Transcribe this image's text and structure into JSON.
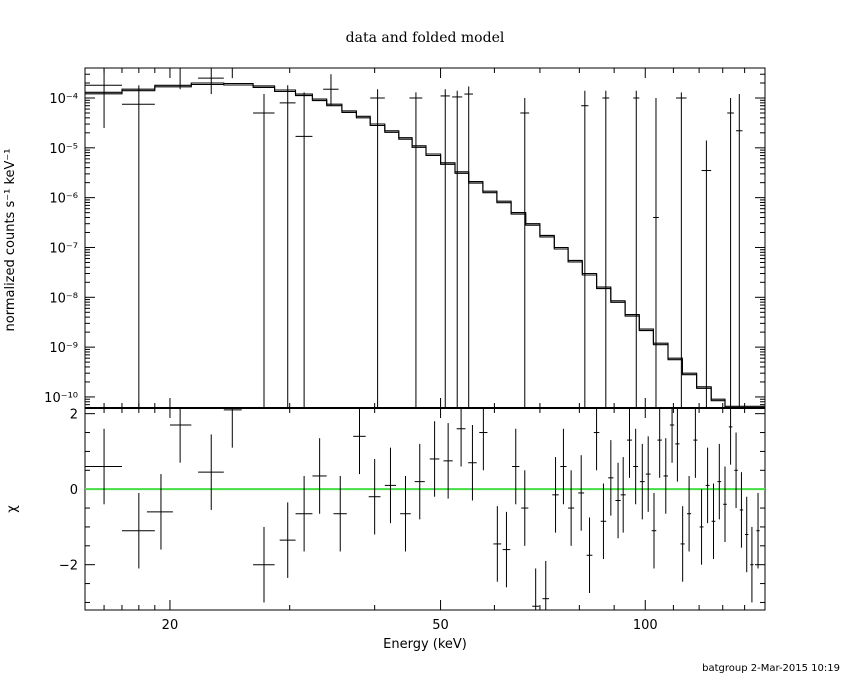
{
  "chart_data": {
    "type": "scatter",
    "title": "data and folded model",
    "xlabel": "Energy (keV)",
    "xscale": "log",
    "xlim": [
      15,
      150
    ],
    "xticks": [
      20,
      50,
      100
    ],
    "panels": [
      {
        "name": "spectrum",
        "ylabel": "normalized counts s⁻¹ keV⁻¹",
        "yscale": "log",
        "ylim": [
          6e-11,
          0.0004
        ],
        "yticks": [
          1e-10,
          1e-09,
          1e-08,
          1e-07,
          1e-06,
          1e-05,
          0.0001
        ],
        "ytick_labels": [
          "10⁻¹⁰",
          "10⁻⁹",
          "10⁻⁸",
          "10⁻⁷",
          "10⁻⁶",
          "10⁻⁵",
          "10⁻⁴"
        ],
        "data_points": [
          {
            "x": 16.0,
            "xlo": 15.0,
            "xhi": 17.0,
            "y": 0.00018,
            "ylo": 2.5e-05,
            "yhi": 0.0004
          },
          {
            "x": 18.0,
            "xlo": 17.0,
            "xhi": 19.0,
            "y": 7.5e-05,
            "ylo": 6e-11,
            "yhi": 0.00018
          },
          {
            "x": 20.7,
            "xlo": 20.0,
            "xhi": 21.5,
            "y": 0.0004,
            "ylo": 0.00015,
            "yhi": 0.0005
          },
          {
            "x": 23.0,
            "xlo": 22.0,
            "xhi": 24.0,
            "y": 0.00025,
            "ylo": 0.00012,
            "yhi": 0.00045
          },
          {
            "x": 24.7,
            "xlo": 24.0,
            "xhi": 25.5,
            "y": 0.00045,
            "ylo": 0.00025,
            "yhi": 0.0005
          },
          {
            "x": 27.5,
            "xlo": 26.5,
            "xhi": 28.5,
            "y": 5e-05,
            "ylo": 6e-11,
            "yhi": 0.00012
          },
          {
            "x": 29.8,
            "xlo": 29.0,
            "xhi": 30.6,
            "y": 8e-05,
            "ylo": 6e-11,
            "yhi": 0.00018
          },
          {
            "x": 31.5,
            "xlo": 30.6,
            "xhi": 32.4,
            "y": 1.7e-05,
            "ylo": 6e-11,
            "yhi": 0.00013
          },
          {
            "x": 34.5,
            "xlo": 33.6,
            "xhi": 35.4,
            "y": 0.00015,
            "ylo": 7e-05,
            "yhi": 0.0003
          },
          {
            "x": 40.4,
            "xlo": 39.4,
            "xhi": 41.4,
            "y": 0.0001,
            "ylo": 6e-11,
            "yhi": 0.00015
          },
          {
            "x": 46.0,
            "xlo": 45.0,
            "xhi": 47.0,
            "y": 0.0001,
            "ylo": 6e-11,
            "yhi": 0.00013
          },
          {
            "x": 50.8,
            "xlo": 50.0,
            "xhi": 51.6,
            "y": 0.00011,
            "ylo": 6e-11,
            "yhi": 0.00015
          },
          {
            "x": 52.9,
            "xlo": 52.0,
            "xhi": 53.8,
            "y": 0.000105,
            "ylo": 6e-11,
            "yhi": 0.00014
          },
          {
            "x": 55.0,
            "xlo": 54.2,
            "xhi": 55.8,
            "y": 0.00012,
            "ylo": 6e-11,
            "yhi": 0.00017
          },
          {
            "x": 66.5,
            "xlo": 65.5,
            "xhi": 67.5,
            "y": 5e-05,
            "ylo": 6e-11,
            "yhi": 0.0001
          },
          {
            "x": 81.5,
            "xlo": 80.5,
            "xhi": 82.5,
            "y": 7e-05,
            "ylo": 6e-11,
            "yhi": 0.00014
          },
          {
            "x": 87.5,
            "xlo": 86.5,
            "xhi": 88.5,
            "y": 0.0001,
            "ylo": 6e-11,
            "yhi": 0.00014
          },
          {
            "x": 97.0,
            "xlo": 96.0,
            "xhi": 98.0,
            "y": 0.0001,
            "ylo": 6e-11,
            "yhi": 0.00014
          },
          {
            "x": 103.7,
            "xlo": 102.7,
            "xhi": 104.7,
            "y": 4e-07,
            "ylo": 6e-11,
            "yhi": 0.0001
          },
          {
            "x": 113.0,
            "xlo": 111.0,
            "xhi": 115.0,
            "y": 0.0001,
            "ylo": 6e-11,
            "yhi": 0.00013
          },
          {
            "x": 123.0,
            "xlo": 121.0,
            "xhi": 125.0,
            "y": 3.5e-06,
            "ylo": 6e-11,
            "yhi": 1.4e-05
          },
          {
            "x": 133.5,
            "xlo": 132.0,
            "xhi": 135.0,
            "y": 5e-05,
            "ylo": 6e-11,
            "yhi": 0.0001
          },
          {
            "x": 137.5,
            "xlo": 136.0,
            "xhi": 139.0,
            "y": 2.2e-05,
            "ylo": 6e-11,
            "yhi": 0.00012
          }
        ],
        "model_step": [
          {
            "xlo": 15.0,
            "xhi": 17.0,
            "y": 0.00013
          },
          {
            "xlo": 17.0,
            "xhi": 19.0,
            "y": 0.00015
          },
          {
            "xlo": 19.0,
            "xhi": 21.5,
            "y": 0.00018
          },
          {
            "xlo": 21.5,
            "xhi": 24.0,
            "y": 0.0002
          },
          {
            "xlo": 24.0,
            "xhi": 26.5,
            "y": 0.000195
          },
          {
            "xlo": 26.5,
            "xhi": 28.5,
            "y": 0.000175
          },
          {
            "xlo": 28.5,
            "xhi": 30.6,
            "y": 0.000145
          },
          {
            "xlo": 30.6,
            "xhi": 32.4,
            "y": 0.00012
          },
          {
            "xlo": 32.4,
            "xhi": 34.0,
            "y": 9.5e-05
          },
          {
            "xlo": 34.0,
            "xhi": 35.8,
            "y": 7.5e-05
          },
          {
            "xlo": 35.8,
            "xhi": 37.6,
            "y": 5.5e-05
          },
          {
            "xlo": 37.6,
            "xhi": 39.4,
            "y": 4.3e-05
          },
          {
            "xlo": 39.4,
            "xhi": 41.4,
            "y": 3e-05
          },
          {
            "xlo": 41.4,
            "xhi": 43.4,
            "y": 2.2e-05
          },
          {
            "xlo": 43.4,
            "xhi": 45.4,
            "y": 1.6e-05
          },
          {
            "xlo": 45.4,
            "xhi": 47.6,
            "y": 1.1e-05
          },
          {
            "xlo": 47.6,
            "xhi": 50.0,
            "y": 7.5e-06
          },
          {
            "xlo": 50.0,
            "xhi": 52.5,
            "y": 5e-06
          },
          {
            "xlo": 52.5,
            "xhi": 55.0,
            "y": 3.3e-06
          },
          {
            "xlo": 55.0,
            "xhi": 57.7,
            "y": 2.1e-06
          },
          {
            "xlo": 57.7,
            "xhi": 60.5,
            "y": 1.35e-06
          },
          {
            "xlo": 60.5,
            "xhi": 63.5,
            "y": 8.5e-07
          },
          {
            "xlo": 63.5,
            "xhi": 66.7,
            "y": 5e-07
          },
          {
            "xlo": 66.7,
            "xhi": 70.0,
            "y": 3e-07
          },
          {
            "xlo": 70.0,
            "xhi": 73.5,
            "y": 1.75e-07
          },
          {
            "xlo": 73.5,
            "xhi": 77.0,
            "y": 1e-07
          },
          {
            "xlo": 77.0,
            "xhi": 80.8,
            "y": 5.5e-08
          },
          {
            "xlo": 80.8,
            "xhi": 84.8,
            "y": 3e-08
          },
          {
            "xlo": 84.8,
            "xhi": 89.0,
            "y": 1.6e-08
          },
          {
            "xlo": 89.0,
            "xhi": 93.4,
            "y": 8.5e-09
          },
          {
            "xlo": 93.4,
            "xhi": 98.0,
            "y": 4.5e-09
          },
          {
            "xlo": 98.0,
            "xhi": 102.8,
            "y": 2.3e-09
          },
          {
            "xlo": 102.8,
            "xhi": 108.0,
            "y": 1.2e-09
          },
          {
            "xlo": 108.0,
            "xhi": 113.4,
            "y": 6e-10
          },
          {
            "xlo": 113.4,
            "xhi": 119.0,
            "y": 3e-10
          },
          {
            "xlo": 119.0,
            "xhi": 125.0,
            "y": 1.6e-10
          },
          {
            "xlo": 125.0,
            "xhi": 131.0,
            "y": 9e-11
          },
          {
            "xlo": 131.0,
            "xhi": 150.0,
            "y": 6.5e-11
          }
        ]
      },
      {
        "name": "residuals",
        "ylabel": "χ",
        "ylim": [
          -3.2,
          2.15
        ],
        "yticks": [
          -2,
          0,
          2
        ],
        "zero_line_color": "#44dd44",
        "data_points": [
          {
            "x": 16.0,
            "xlo": 15.0,
            "xhi": 17.0,
            "y": 0.6,
            "err": 1.0
          },
          {
            "x": 18.0,
            "xlo": 17.0,
            "xhi": 19.0,
            "y": -1.1,
            "err": 1.0
          },
          {
            "x": 19.4,
            "xlo": 18.5,
            "xhi": 20.2,
            "y": -0.6,
            "err": 1.0
          },
          {
            "x": 20.7,
            "xlo": 20.0,
            "xhi": 21.5,
            "y": 1.7,
            "err": 1.0
          },
          {
            "x": 23.0,
            "xlo": 22.0,
            "xhi": 24.0,
            "y": 0.45,
            "err": 1.0
          },
          {
            "x": 24.7,
            "xlo": 24.0,
            "xhi": 25.5,
            "y": 2.1,
            "err": 1.0
          },
          {
            "x": 27.5,
            "xlo": 26.5,
            "xhi": 28.5,
            "y": -2.0,
            "err": 1.0
          },
          {
            "x": 29.8,
            "xlo": 29.0,
            "xhi": 30.6,
            "y": -1.35,
            "err": 1.0
          },
          {
            "x": 31.5,
            "xlo": 30.6,
            "xhi": 32.4,
            "y": -0.65,
            "err": 1.0
          },
          {
            "x": 33.2,
            "xlo": 32.4,
            "xhi": 34.0,
            "y": 0.35,
            "err": 1.0
          },
          {
            "x": 35.6,
            "xlo": 34.8,
            "xhi": 36.4,
            "y": -0.65,
            "err": 1.0
          },
          {
            "x": 38.0,
            "xlo": 37.2,
            "xhi": 38.8,
            "y": 1.4,
            "err": 1.0
          },
          {
            "x": 40.0,
            "xlo": 39.2,
            "xhi": 40.8,
            "y": -0.2,
            "err": 1.0
          },
          {
            "x": 42.2,
            "xlo": 41.4,
            "xhi": 43.0,
            "y": 0.1,
            "err": 1.0
          },
          {
            "x": 44.4,
            "xlo": 43.6,
            "xhi": 45.2,
            "y": -0.65,
            "err": 1.0
          },
          {
            "x": 46.6,
            "xlo": 45.8,
            "xhi": 47.4,
            "y": 0.2,
            "err": 1.0
          },
          {
            "x": 49.0,
            "xlo": 48.2,
            "xhi": 49.8,
            "y": 0.8,
            "err": 1.0
          },
          {
            "x": 51.3,
            "xlo": 50.5,
            "xhi": 52.1,
            "y": 0.75,
            "err": 1.0
          },
          {
            "x": 53.6,
            "xlo": 52.8,
            "xhi": 54.4,
            "y": 1.6,
            "err": 1.0
          },
          {
            "x": 55.7,
            "xlo": 54.9,
            "xhi": 56.5,
            "y": 0.7,
            "err": 1.0
          },
          {
            "x": 57.8,
            "xlo": 57.0,
            "xhi": 58.6,
            "y": 1.5,
            "err": 1.0
          },
          {
            "x": 60.6,
            "xlo": 59.8,
            "xhi": 61.4,
            "y": -1.45,
            "err": 1.0
          },
          {
            "x": 62.5,
            "xlo": 61.7,
            "xhi": 63.3,
            "y": -1.6,
            "err": 1.0
          },
          {
            "x": 64.5,
            "xlo": 63.7,
            "xhi": 65.3,
            "y": 0.6,
            "err": 1.0
          },
          {
            "x": 66.5,
            "xlo": 65.7,
            "xhi": 67.3,
            "y": -0.5,
            "err": 1.0
          },
          {
            "x": 69.0,
            "xlo": 68.2,
            "xhi": 69.8,
            "y": -3.1,
            "err": 1.0
          },
          {
            "x": 71.4,
            "xlo": 70.6,
            "xhi": 72.2,
            "y": -2.9,
            "err": 1.0
          },
          {
            "x": 73.8,
            "xlo": 73.0,
            "xhi": 74.6,
            "y": -0.15,
            "err": 1.0
          },
          {
            "x": 75.8,
            "xlo": 75.0,
            "xhi": 76.6,
            "y": 0.6,
            "err": 1.0
          },
          {
            "x": 77.8,
            "xlo": 77.0,
            "xhi": 78.6,
            "y": -0.5,
            "err": 1.0
          },
          {
            "x": 80.5,
            "xlo": 79.7,
            "xhi": 81.3,
            "y": -0.1,
            "err": 1.0
          },
          {
            "x": 82.8,
            "xlo": 82.0,
            "xhi": 83.6,
            "y": -1.75,
            "err": 1.0
          },
          {
            "x": 84.8,
            "xlo": 84.0,
            "xhi": 85.6,
            "y": 1.5,
            "err": 1.0
          },
          {
            "x": 86.8,
            "xlo": 86.0,
            "xhi": 87.6,
            "y": -0.85,
            "err": 1.0
          },
          {
            "x": 89.0,
            "xlo": 88.2,
            "xhi": 89.8,
            "y": 0.3,
            "err": 1.0
          },
          {
            "x": 91.2,
            "xlo": 90.4,
            "xhi": 92.0,
            "y": -0.3,
            "err": 1.0
          },
          {
            "x": 92.8,
            "xlo": 92.0,
            "xhi": 93.6,
            "y": -0.15,
            "err": 1.0
          },
          {
            "x": 94.8,
            "xlo": 94.0,
            "xhi": 95.6,
            "y": 1.3,
            "err": 1.0
          },
          {
            "x": 96.8,
            "xlo": 96.0,
            "xhi": 97.6,
            "y": 0.6,
            "err": 1.0
          },
          {
            "x": 99.0,
            "xlo": 98.2,
            "xhi": 99.8,
            "y": 0.2,
            "err": 1.0
          },
          {
            "x": 101.0,
            "xlo": 100.2,
            "xhi": 101.8,
            "y": 0.4,
            "err": 1.0
          },
          {
            "x": 103.0,
            "xlo": 102.2,
            "xhi": 103.8,
            "y": -1.1,
            "err": 1.0
          },
          {
            "x": 105.0,
            "xlo": 104.2,
            "xhi": 105.8,
            "y": 1.3,
            "err": 1.0
          },
          {
            "x": 107.2,
            "xlo": 106.4,
            "xhi": 108.0,
            "y": 0.35,
            "err": 1.0
          },
          {
            "x": 109.5,
            "xlo": 108.7,
            "xhi": 110.3,
            "y": 1.7,
            "err": 1.0
          },
          {
            "x": 111.5,
            "xlo": 110.7,
            "xhi": 112.3,
            "y": 1.2,
            "err": 1.0
          },
          {
            "x": 113.5,
            "xlo": 112.7,
            "xhi": 114.3,
            "y": -1.45,
            "err": 1.0
          },
          {
            "x": 116.0,
            "xlo": 115.2,
            "xhi": 116.8,
            "y": -0.65,
            "err": 1.0
          },
          {
            "x": 118.5,
            "xlo": 117.7,
            "xhi": 119.3,
            "y": 1.3,
            "err": 1.0
          },
          {
            "x": 121.0,
            "xlo": 120.2,
            "xhi": 121.8,
            "y": -1.0,
            "err": 1.0
          },
          {
            "x": 123.5,
            "xlo": 122.7,
            "xhi": 124.3,
            "y": 0.1,
            "err": 1.0
          },
          {
            "x": 126.0,
            "xlo": 125.2,
            "xhi": 126.8,
            "y": -0.85,
            "err": 1.0
          },
          {
            "x": 128.5,
            "xlo": 127.7,
            "xhi": 129.3,
            "y": 0.2,
            "err": 1.0
          },
          {
            "x": 131.0,
            "xlo": 130.2,
            "xhi": 131.8,
            "y": -0.4,
            "err": 1.0
          },
          {
            "x": 133.5,
            "xlo": 132.7,
            "xhi": 134.3,
            "y": 1.65,
            "err": 1.0
          },
          {
            "x": 136.0,
            "xlo": 135.2,
            "xhi": 136.8,
            "y": 0.5,
            "err": 1.0
          },
          {
            "x": 138.5,
            "xlo": 137.7,
            "xhi": 139.3,
            "y": -0.55,
            "err": 1.0
          },
          {
            "x": 141.0,
            "xlo": 140.2,
            "xhi": 141.8,
            "y": -1.2,
            "err": 1.0
          },
          {
            "x": 143.5,
            "xlo": 142.7,
            "xhi": 144.3,
            "y": -2.0,
            "err": 1.0
          },
          {
            "x": 146.5,
            "xlo": 145.7,
            "xhi": 147.3,
            "y": -1.1,
            "err": 1.0
          }
        ]
      }
    ]
  },
  "footer": {
    "text": "batgroup  2-Mar-2015 10:19"
  }
}
